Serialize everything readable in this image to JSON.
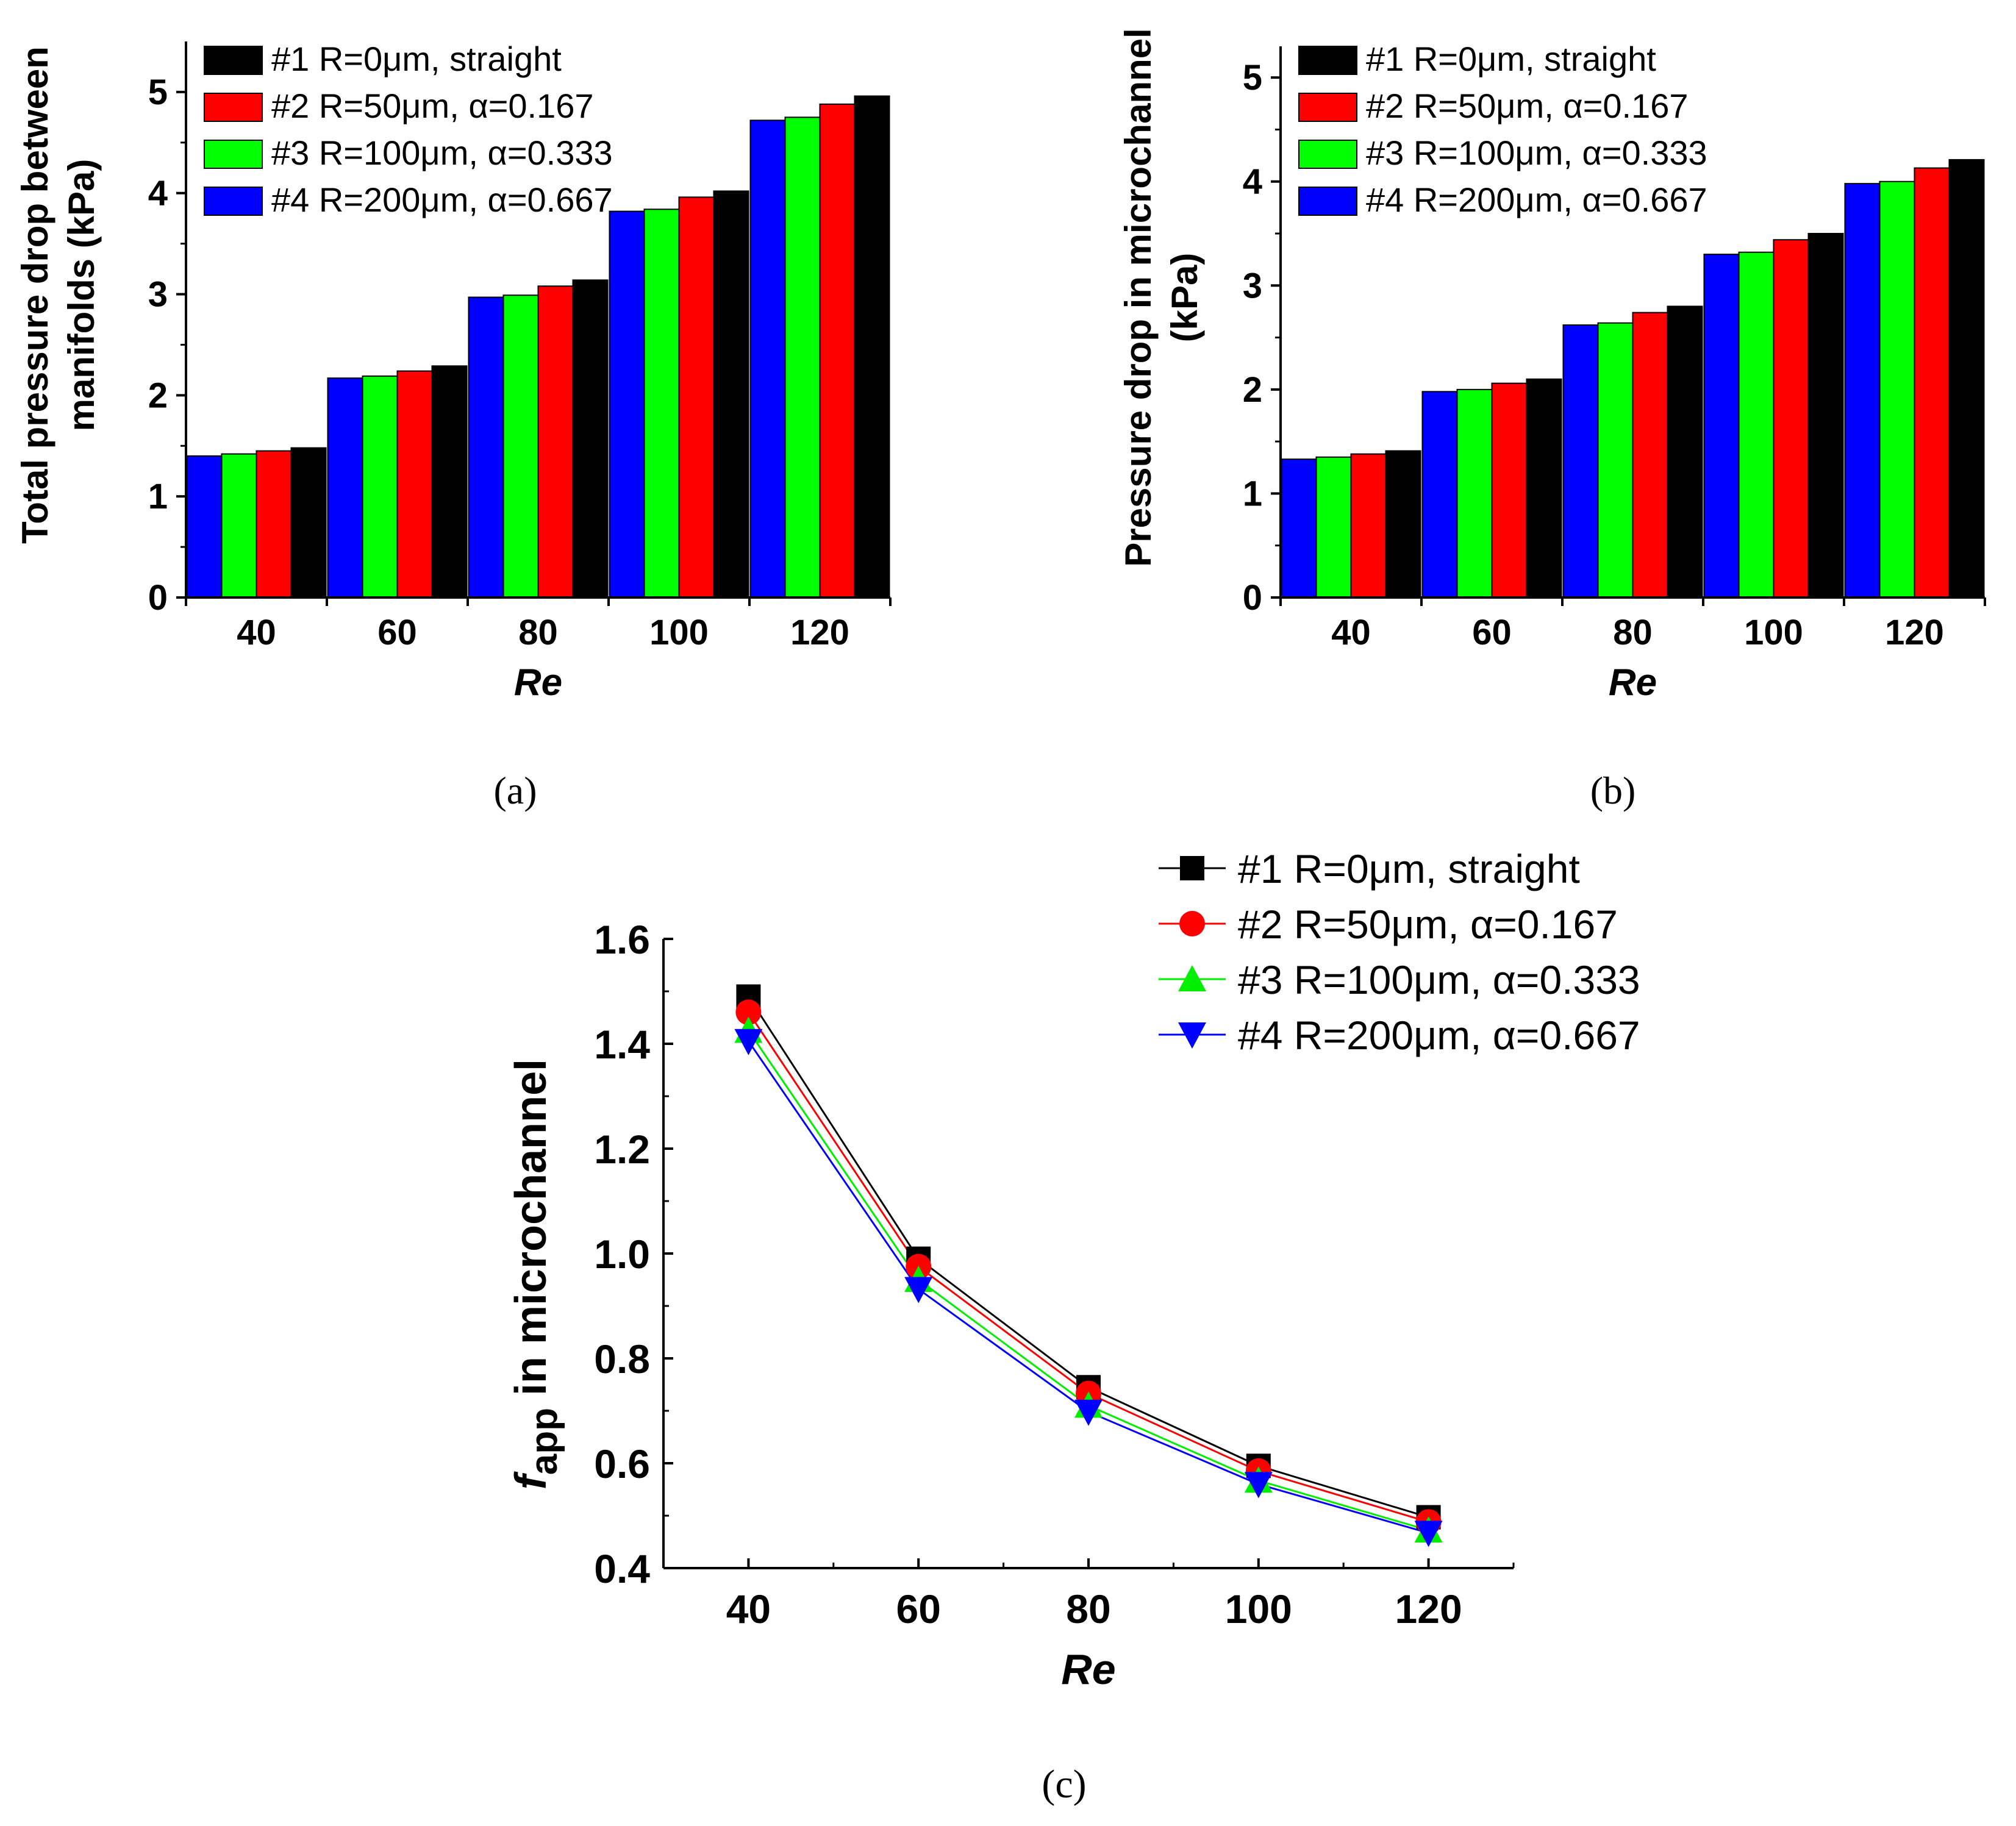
{
  "legend_labels": [
    "#1 R=0μm, straight",
    "#2 R=50μm, α=0.167",
    "#3 R=100μm, α=0.333",
    "#4 R=200μm, α=0.667"
  ],
  "chart_data": [
    {
      "id": "a",
      "type": "bar",
      "caption": "(a)",
      "xlabel": "Re",
      "ylabel_lines": [
        "Total pressure drop between",
        "manifolds (kPa)"
      ],
      "categories": [
        "40",
        "60",
        "80",
        "100",
        "120"
      ],
      "ylim": [
        0,
        5.5
      ],
      "yticks": [
        0,
        1,
        2,
        3,
        4,
        5
      ],
      "legend_position": "top-left",
      "bar_order": [
        "#4",
        "#3",
        "#2",
        "#1"
      ],
      "series": [
        {
          "name": "#1 R=0μm, straight",
          "color": "#000000",
          "values": [
            1.48,
            2.29,
            3.14,
            4.02,
            4.96
          ]
        },
        {
          "name": "#2 R=50μm, α=0.167",
          "color": "#ff0000",
          "values": [
            1.45,
            2.24,
            3.08,
            3.96,
            4.88
          ]
        },
        {
          "name": "#3 R=100μm, α=0.333",
          "color": "#00ff00",
          "values": [
            1.42,
            2.19,
            2.99,
            3.84,
            4.75
          ]
        },
        {
          "name": "#4 R=200μm, α=0.667",
          "color": "#0000ff",
          "values": [
            1.4,
            2.17,
            2.97,
            3.82,
            4.72
          ]
        }
      ]
    },
    {
      "id": "b",
      "type": "bar",
      "caption": "(b)",
      "xlabel": "Re",
      "ylabel_lines": [
        "Pressure drop in microchannel",
        "(kPa)"
      ],
      "categories": [
        "40",
        "60",
        "80",
        "100",
        "120"
      ],
      "ylim": [
        0,
        5.3
      ],
      "yticks": [
        0,
        1,
        2,
        3,
        4,
        5
      ],
      "legend_position": "top-left",
      "bar_order": [
        "#4",
        "#3",
        "#2",
        "#1"
      ],
      "series": [
        {
          "name": "#1 R=0μm, straight",
          "color": "#000000",
          "values": [
            1.41,
            2.1,
            2.8,
            3.5,
            4.21
          ]
        },
        {
          "name": "#2 R=50μm, α=0.167",
          "color": "#ff0000",
          "values": [
            1.38,
            2.06,
            2.74,
            3.44,
            4.13
          ]
        },
        {
          "name": "#3 R=100μm, α=0.333",
          "color": "#00ff00",
          "values": [
            1.35,
            2.0,
            2.64,
            3.32,
            4.0
          ]
        },
        {
          "name": "#4 R=200μm, α=0.667",
          "color": "#0000ff",
          "values": [
            1.33,
            1.98,
            2.62,
            3.3,
            3.98
          ]
        }
      ]
    },
    {
      "id": "c",
      "type": "line",
      "caption": "(c)",
      "xlabel": "Re",
      "ylabel_f": "f",
      "ylabel_sub": "app",
      "ylabel_rest": " in microchannel",
      "x": [
        40,
        60,
        80,
        100,
        120
      ],
      "xlim": [
        30,
        130
      ],
      "xticks": [
        40,
        60,
        80,
        100,
        120
      ],
      "ylim": [
        0.4,
        1.6
      ],
      "yticks": [
        "0.4",
        "0.6",
        "0.8",
        "1.0",
        "1.2",
        "1.4",
        "1.6"
      ],
      "legend_position": "top-right",
      "series": [
        {
          "name": "#1 R=0μm, straight",
          "color": "#000000",
          "marker": "square",
          "values": [
            1.49,
            0.99,
            0.745,
            0.595,
            0.497
          ]
        },
        {
          "name": "#2 R=50μm, α=0.167",
          "color": "#ff0000",
          "marker": "circle",
          "values": [
            1.46,
            0.975,
            0.733,
            0.585,
            0.488
          ]
        },
        {
          "name": "#3 R=100μm, α=0.333",
          "color": "#00ee00",
          "marker": "triangle-up",
          "values": [
            1.425,
            0.95,
            0.71,
            0.567,
            0.472
          ]
        },
        {
          "name": "#4 R=200μm, α=0.667",
          "color": "#0000ff",
          "marker": "triangle-down",
          "values": [
            1.405,
            0.932,
            0.698,
            0.56,
            0.467
          ]
        }
      ]
    }
  ]
}
